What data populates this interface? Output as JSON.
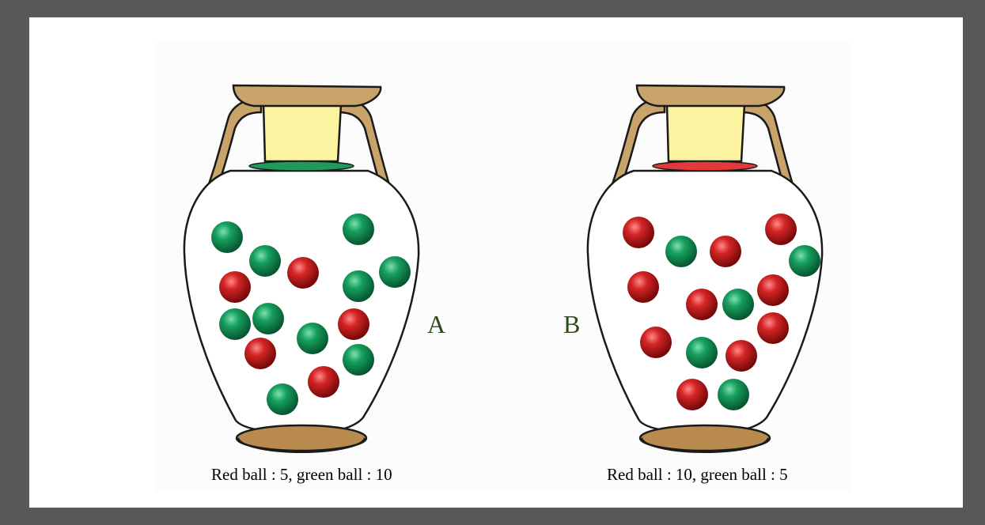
{
  "urns": [
    {
      "label": "A",
      "caption": "Red ball : 5, green ball : 10",
      "rim_color": "#1e9a5c",
      "red_count": 5,
      "green_count": 10
    },
    {
      "label": "B",
      "caption": "Red ball : 10, green ball : 5",
      "rim_color": "#e23a3a",
      "red_count": 10,
      "green_count": 5
    }
  ],
  "colors": {
    "red_ball": "#b01414",
    "green_ball": "#138a4f",
    "vase_handle": "#c8a36a",
    "vase_neck": "#fbf3a0",
    "vase_base": "#b88a4e"
  }
}
